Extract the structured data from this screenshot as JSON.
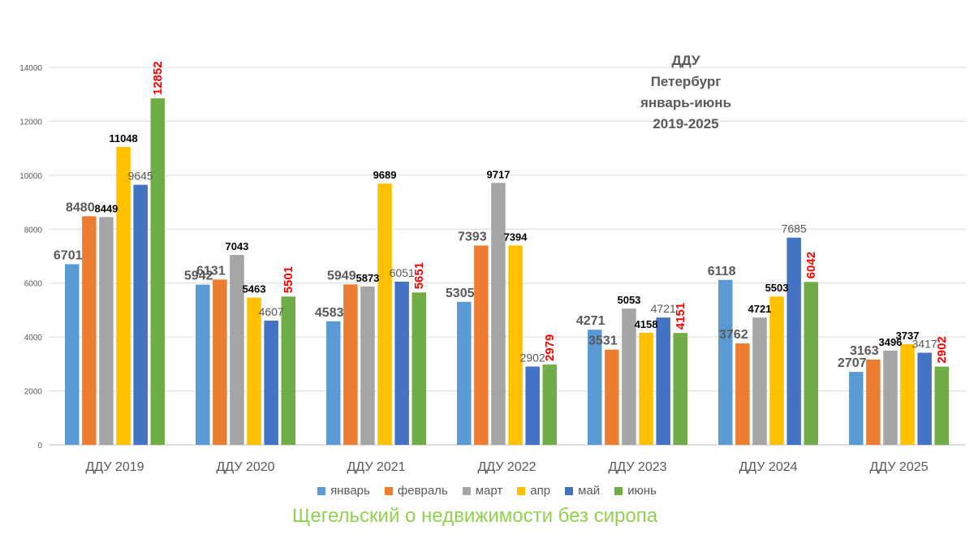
{
  "chart_data": {
    "type": "bar",
    "title_lines": [
      "ДДУ",
      "Петербург",
      "январь-июнь",
      "2019-2025"
    ],
    "categories": [
      "ДДУ 2019",
      "ДДУ 2020",
      "ДДУ 2021",
      "ДДУ 2022",
      "ДДУ 2023",
      "ДДУ 2024",
      "ДДУ 2025"
    ],
    "series": [
      {
        "name": "январь",
        "color": "#5b9bd5",
        "values": [
          6701,
          5942,
          4583,
          5305,
          4271,
          6118,
          2707
        ]
      },
      {
        "name": "февраль",
        "color": "#ed7d31",
        "values": [
          8480,
          6131,
          5949,
          7393,
          3531,
          3762,
          3163
        ]
      },
      {
        "name": "март",
        "color": "#a5a5a5",
        "values": [
          8449,
          7043,
          5873,
          9717,
          5053,
          4721,
          3496
        ]
      },
      {
        "name": "апр",
        "color": "#ffc000",
        "values": [
          11048,
          5463,
          9689,
          7394,
          4158,
          5503,
          3737
        ]
      },
      {
        "name": "май",
        "color": "#4472c4",
        "values": [
          9645,
          4607,
          6051,
          2902,
          4721,
          7685,
          3417
        ]
      },
      {
        "name": "июнь",
        "color": "#70ad47",
        "values": [
          12852,
          5501,
          5651,
          2979,
          4151,
          6042,
          2902
        ]
      }
    ],
    "ylim": [
      0,
      14000
    ],
    "yticks": [
      0,
      2000,
      4000,
      6000,
      8000,
      10000,
      12000,
      14000
    ],
    "grid": true,
    "legend_position": "bottom",
    "june_label_color": "#ff0000"
  },
  "watermark": "Щегельский о недвижимости без сиропа"
}
